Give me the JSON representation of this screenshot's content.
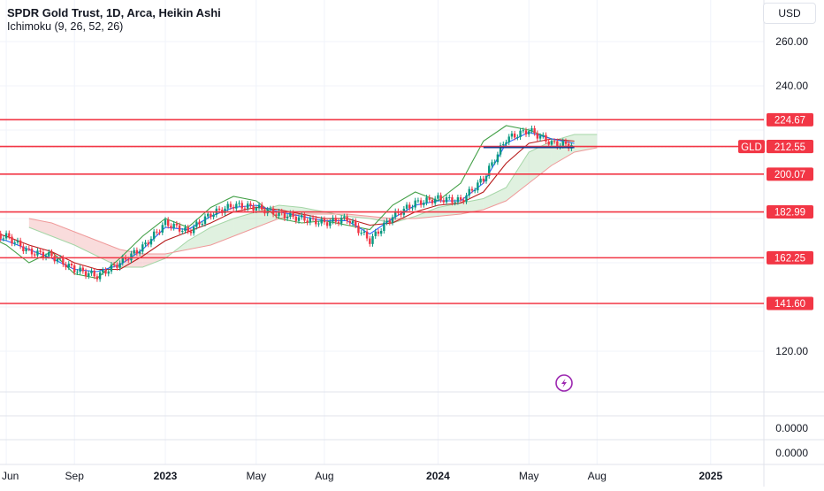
{
  "header": {
    "title": "SPDR Gold Trust, 1D, Arca, Heikin Ashi",
    "indicator": "Ichimoku (9, 26, 52, 26)",
    "currency": "USD"
  },
  "colors": {
    "level_line": "#f23645",
    "candle_up": "#089981",
    "candle_down": "#f23645",
    "conversion_line": "#2962ff",
    "base_line": "#b71c1c",
    "lagging_span": "#43a047",
    "cloud_bull": "#a5d6a7",
    "cloud_bear": "#ef9a9a",
    "support_line": "#1e3a8a"
  },
  "chart_data": {
    "type": "candlestick",
    "x_tick_labels": [
      "Jun",
      "Sep",
      "2023",
      "May",
      "Aug",
      "2024",
      "May",
      "Aug",
      "2025"
    ],
    "price_axis_labels": [
      "260.00",
      "240.00",
      "120.00"
    ],
    "price_axis_ticks": [
      260,
      240,
      220,
      200,
      180,
      160,
      140,
      120
    ],
    "y_range": [
      100,
      270
    ],
    "lower_pane_labels": [
      "0.0000",
      "0.0000"
    ],
    "levels": [
      224.67,
      212.58,
      200.07,
      182.99,
      162.25,
      141.6
    ],
    "level_labels": [
      "224.67",
      "212.58",
      "200.07",
      "182.99",
      "162.25",
      "141.60"
    ],
    "last_price": 212.55,
    "last_price_label": "212.55",
    "symbol_badge": "GLD",
    "support_segment": {
      "price": 212.55,
      "from": "2024-03",
      "to": "2024-07"
    },
    "lagging_span_line": [
      [
        "2022-05",
        173
      ],
      [
        "2022-06",
        168
      ],
      [
        "2022-07",
        160
      ],
      [
        "2022-08",
        165
      ],
      [
        "2022-09",
        155
      ],
      [
        "2022-10",
        153
      ],
      [
        "2022-11",
        162
      ],
      [
        "2022-12",
        172
      ],
      [
        "2023-01",
        180
      ],
      [
        "2023-02",
        176
      ],
      [
        "2023-03",
        185
      ],
      [
        "2023-04",
        190
      ],
      [
        "2023-05",
        188
      ],
      [
        "2023-06",
        180
      ],
      [
        "2023-07",
        178
      ],
      [
        "2023-08",
        179
      ],
      [
        "2023-09",
        177
      ],
      [
        "2023-10",
        175
      ],
      [
        "2023-11",
        186
      ],
      [
        "2023-12",
        192
      ],
      [
        "2024-01",
        188
      ],
      [
        "2024-02",
        196
      ],
      [
        "2024-03",
        215
      ],
      [
        "2024-04",
        222
      ],
      [
        "2024-05",
        220
      ],
      [
        "2024-06",
        216
      ]
    ],
    "price_line": [
      [
        "2022-05",
        172
      ],
      [
        "2022-06",
        172
      ],
      [
        "2022-07",
        165
      ],
      [
        "2022-08",
        163
      ],
      [
        "2022-09",
        157
      ],
      [
        "2022-10",
        154
      ],
      [
        "2022-11",
        160
      ],
      [
        "2022-12",
        167
      ],
      [
        "2023-01",
        178
      ],
      [
        "2023-02",
        174
      ],
      [
        "2023-03",
        182
      ],
      [
        "2023-04",
        186
      ],
      [
        "2023-05",
        185
      ],
      [
        "2023-06",
        182
      ],
      [
        "2023-07",
        180
      ],
      [
        "2023-08",
        178
      ],
      [
        "2023-09",
        180
      ],
      [
        "2023-10",
        170
      ],
      [
        "2023-11",
        181
      ],
      [
        "2023-12",
        187
      ],
      [
        "2024-01",
        189
      ],
      [
        "2024-02",
        188
      ],
      [
        "2024-03",
        198
      ],
      [
        "2024-04",
        216
      ],
      [
        "2024-05",
        220
      ],
      [
        "2024-06",
        214
      ],
      [
        "2024-07",
        213
      ]
    ],
    "conversion_line": [
      [
        "2022-05",
        172
      ],
      [
        "2022-06",
        170
      ],
      [
        "2022-07",
        166
      ],
      [
        "2022-08",
        162
      ],
      [
        "2022-09",
        157
      ],
      [
        "2022-10",
        156
      ],
      [
        "2022-11",
        159
      ],
      [
        "2022-12",
        166
      ],
      [
        "2023-01",
        176
      ],
      [
        "2023-02",
        175
      ],
      [
        "2023-03",
        181
      ],
      [
        "2023-04",
        185
      ],
      [
        "2023-05",
        186
      ],
      [
        "2023-06",
        183
      ],
      [
        "2023-07",
        181
      ],
      [
        "2023-08",
        179
      ],
      [
        "2023-09",
        179
      ],
      [
        "2023-10",
        173
      ],
      [
        "2023-11",
        180
      ],
      [
        "2023-12",
        186
      ],
      [
        "2024-01",
        188
      ],
      [
        "2024-02",
        188
      ],
      [
        "2024-03",
        196
      ],
      [
        "2024-04",
        214
      ],
      [
        "2024-05",
        219
      ],
      [
        "2024-06",
        216
      ],
      [
        "2024-07",
        214
      ]
    ],
    "base_line": [
      [
        "2022-05",
        175
      ],
      [
        "2022-06",
        172
      ],
      [
        "2022-07",
        168
      ],
      [
        "2022-08",
        165
      ],
      [
        "2022-09",
        160
      ],
      [
        "2022-10",
        157
      ],
      [
        "2022-11",
        157
      ],
      [
        "2022-12",
        163
      ],
      [
        "2023-01",
        170
      ],
      [
        "2023-02",
        174
      ],
      [
        "2023-03",
        178
      ],
      [
        "2023-04",
        183
      ],
      [
        "2023-05",
        185
      ],
      [
        "2023-06",
        184
      ],
      [
        "2023-07",
        182
      ],
      [
        "2023-08",
        180
      ],
      [
        "2023-09",
        180
      ],
      [
        "2023-10",
        177
      ],
      [
        "2023-11",
        178
      ],
      [
        "2023-12",
        183
      ],
      [
        "2024-01",
        186
      ],
      [
        "2024-02",
        187
      ],
      [
        "2024-03",
        192
      ],
      [
        "2024-04",
        205
      ],
      [
        "2024-05",
        214
      ],
      [
        "2024-06",
        216
      ],
      [
        "2024-07",
        215
      ]
    ],
    "cloud_span_a": [
      [
        "2022-07",
        176
      ],
      [
        "2022-08",
        172
      ],
      [
        "2022-09",
        168
      ],
      [
        "2022-10",
        163
      ],
      [
        "2022-11",
        158
      ],
      [
        "2022-12",
        158
      ],
      [
        "2023-01",
        162
      ],
      [
        "2023-02",
        170
      ],
      [
        "2023-03",
        176
      ],
      [
        "2023-04",
        180
      ],
      [
        "2023-05",
        183
      ],
      [
        "2023-06",
        186
      ],
      [
        "2023-07",
        185
      ],
      [
        "2023-08",
        183
      ],
      [
        "2023-09",
        181
      ],
      [
        "2023-10",
        180
      ],
      [
        "2023-11",
        178
      ],
      [
        "2023-12",
        181
      ],
      [
        "2024-01",
        185
      ],
      [
        "2024-02",
        187
      ],
      [
        "2024-03",
        189
      ],
      [
        "2024-04",
        194
      ],
      [
        "2024-05",
        210
      ],
      [
        "2024-06",
        215
      ],
      [
        "2024-07",
        218
      ],
      [
        "2024-08",
        218
      ]
    ],
    "cloud_span_b": [
      [
        "2022-07",
        180
      ],
      [
        "2022-08",
        178
      ],
      [
        "2022-09",
        174
      ],
      [
        "2022-10",
        170
      ],
      [
        "2022-11",
        166
      ],
      [
        "2022-12",
        164
      ],
      [
        "2023-01",
        164
      ],
      [
        "2023-02",
        166
      ],
      [
        "2023-03",
        168
      ],
      [
        "2023-04",
        172
      ],
      [
        "2023-05",
        176
      ],
      [
        "2023-06",
        180
      ],
      [
        "2023-07",
        182
      ],
      [
        "2023-08",
        182
      ],
      [
        "2023-09",
        182
      ],
      [
        "2023-10",
        181
      ],
      [
        "2023-11",
        180
      ],
      [
        "2023-12",
        180
      ],
      [
        "2024-01",
        181
      ],
      [
        "2024-02",
        182
      ],
      [
        "2024-03",
        184
      ],
      [
        "2024-04",
        188
      ],
      [
        "2024-05",
        196
      ],
      [
        "2024-06",
        204
      ],
      [
        "2024-07",
        210
      ],
      [
        "2024-08",
        212
      ]
    ]
  }
}
